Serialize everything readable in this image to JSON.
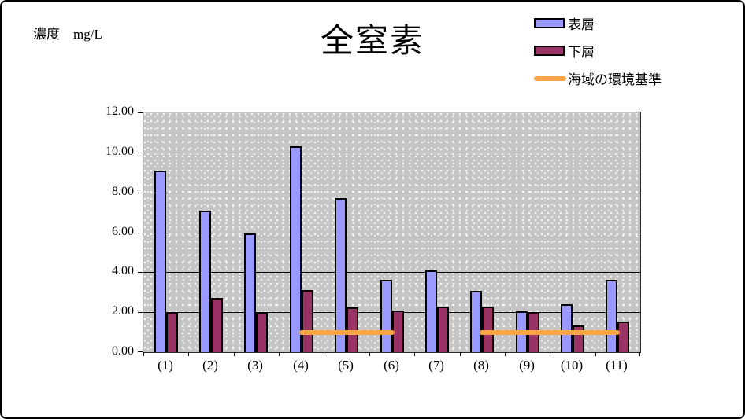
{
  "header": {
    "units_label": "濃度　mg/L"
  },
  "chart_data": {
    "type": "bar",
    "title": "全窒素",
    "ylabel": "濃度　mg/L",
    "xlabel": "",
    "categories": [
      "(1)",
      "(2)",
      "(3)",
      "(4)",
      "(5)",
      "(6)",
      "(7)",
      "(8)",
      "(9)",
      "(10)",
      "(11)"
    ],
    "series": [
      {
        "name": "表層",
        "type": "bar",
        "color": "#9999ff",
        "values": [
          9.1,
          7.1,
          5.95,
          10.3,
          7.7,
          3.6,
          4.1,
          3.05,
          2.05,
          2.4,
          3.6
        ]
      },
      {
        "name": "下層",
        "type": "bar",
        "color": "#993366",
        "values": [
          2.0,
          2.7,
          1.95,
          3.1,
          2.25,
          2.1,
          2.3,
          2.3,
          2.0,
          1.35,
          1.55
        ]
      },
      {
        "name": "海域の環境基準",
        "type": "line",
        "color": "#faa448",
        "values": [
          null,
          null,
          null,
          1.0,
          1.0,
          1.0,
          null,
          1.0,
          1.0,
          1.0,
          1.0
        ]
      }
    ],
    "ylim": [
      0,
      12
    ],
    "ytick_step": 2,
    "ytick_decimals": 2,
    "grid": "horizontal-major",
    "legend_position": "top-right",
    "plot_background": "#c5c5c5",
    "bar_border_color": "#000000"
  }
}
